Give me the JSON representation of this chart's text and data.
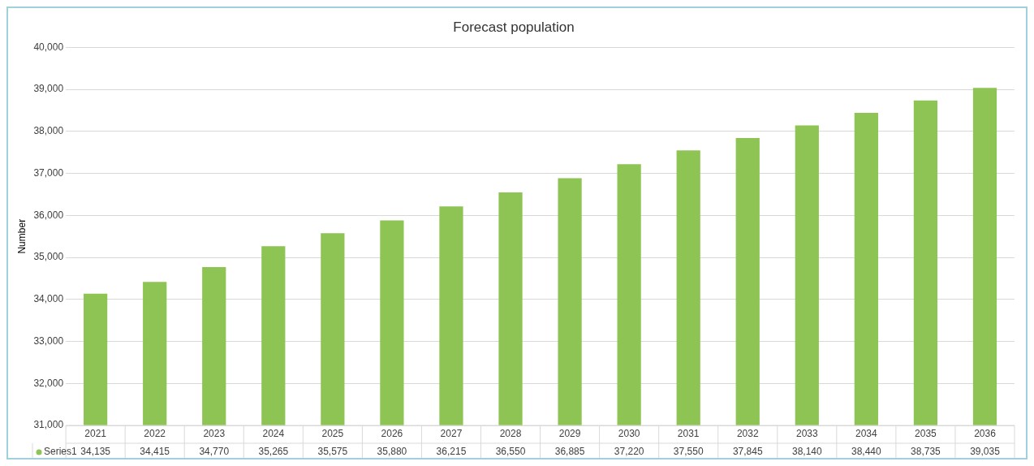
{
  "chart_data": {
    "type": "bar",
    "title": "Forecast population",
    "ylabel": "Number",
    "categories": [
      "2021",
      "2022",
      "2023",
      "2024",
      "2025",
      "2026",
      "2027",
      "2028",
      "2029",
      "2030",
      "2031",
      "2032",
      "2033",
      "2034",
      "2035",
      "2036"
    ],
    "series": [
      {
        "name": "Series1",
        "color": "#8dc453",
        "values": [
          34135,
          34415,
          34770,
          35265,
          35575,
          35880,
          36215,
          36550,
          36885,
          37220,
          37550,
          37845,
          38140,
          38440,
          38735,
          39035
        ],
        "value_labels": [
          "34,135",
          "34,415",
          "34,770",
          "35,265",
          "35,575",
          "35,880",
          "36,215",
          "36,550",
          "36,885",
          "37,220",
          "37,550",
          "37,845",
          "38,140",
          "38,440",
          "38,735",
          "39,035"
        ]
      }
    ],
    "ylim": [
      31000,
      40000
    ],
    "yticks": [
      {
        "value": 31000,
        "label": "31,000"
      },
      {
        "value": 32000,
        "label": "32,000"
      },
      {
        "value": 33000,
        "label": "33,000"
      },
      {
        "value": 34000,
        "label": "34,000"
      },
      {
        "value": 35000,
        "label": "35,000"
      },
      {
        "value": 36000,
        "label": "36,000"
      },
      {
        "value": 37000,
        "label": "37,000"
      },
      {
        "value": 38000,
        "label": "38,000"
      },
      {
        "value": 39000,
        "label": "39,000"
      },
      {
        "value": 40000,
        "label": "40,000"
      }
    ],
    "grid": "y",
    "legend": "bottom left"
  }
}
